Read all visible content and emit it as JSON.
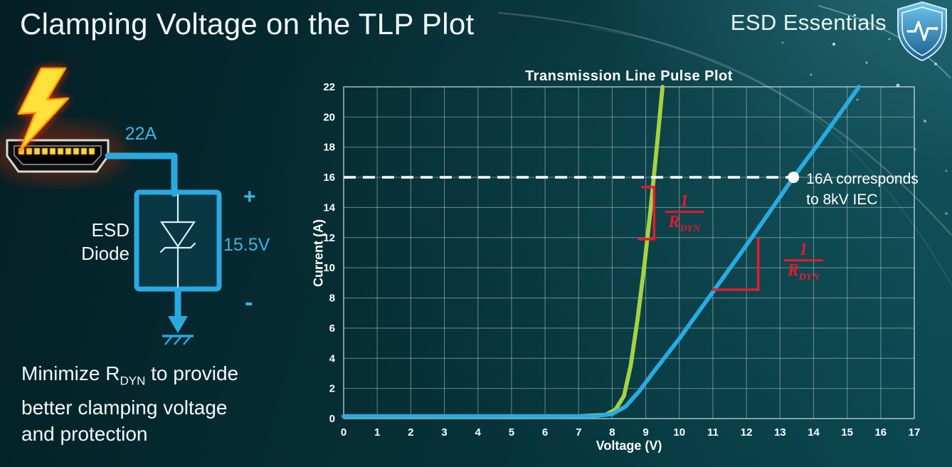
{
  "slide": {
    "title": "Clamping Voltage on the TLP Plot",
    "brand": "ESD Essentials",
    "note_line1_pre": "Minimize R",
    "note_line1_sub": "DYN",
    "note_line1_post": " to provide",
    "note_line2": "better clamping voltage",
    "note_line3": "and protection"
  },
  "diagram": {
    "surge_current": "22A",
    "clamp_voltage": "15.5V",
    "plus_sign": "+",
    "minus_sign": "-",
    "device_line1": "ESD",
    "device_line2": "Diode",
    "wire_color": "#2aa9e0"
  },
  "chart_data": {
    "type": "line",
    "title": "Transmission Line Pulse Plot",
    "xlabel": "Voltage (V)",
    "ylabel": "Current (A)",
    "xlim": [
      0,
      17
    ],
    "ylim": [
      0,
      22
    ],
    "grid": true,
    "x_ticks": [
      0,
      1,
      2,
      3,
      4,
      5,
      6,
      7,
      8,
      9,
      10,
      11,
      12,
      13,
      14,
      15,
      16,
      17
    ],
    "y_ticks": [
      0,
      2,
      4,
      6,
      8,
      10,
      12,
      14,
      16,
      18,
      20,
      22
    ],
    "series": [
      {
        "name": "green",
        "color": "#a6d243",
        "points": [
          [
            0,
            0.15
          ],
          [
            7.0,
            0.15
          ],
          [
            7.8,
            0.25
          ],
          [
            8.1,
            0.6
          ],
          [
            8.35,
            1.5
          ],
          [
            8.55,
            3.5
          ],
          [
            8.75,
            6.5
          ],
          [
            8.95,
            10
          ],
          [
            9.15,
            14
          ],
          [
            9.35,
            18.5
          ],
          [
            9.5,
            22
          ]
        ]
      },
      {
        "name": "blue",
        "color": "#29abe2",
        "points": [
          [
            0,
            0.15
          ],
          [
            7.4,
            0.15
          ],
          [
            8.0,
            0.3
          ],
          [
            8.4,
            0.8
          ],
          [
            8.8,
            1.8
          ],
          [
            9.2,
            3.0
          ],
          [
            10,
            5.3
          ],
          [
            11,
            8.4
          ],
          [
            12,
            11.5
          ],
          [
            13,
            14.7
          ],
          [
            13.4,
            16
          ],
          [
            14,
            17.8
          ],
          [
            15,
            20.9
          ],
          [
            15.35,
            22
          ]
        ]
      }
    ],
    "reference_line": {
      "y": 16,
      "x_start": 0,
      "x_end": 13.4,
      "color": "#ffffff",
      "style": "dashed"
    },
    "marker": {
      "x": 13.4,
      "y": 16,
      "color": "#ffffff"
    },
    "marker_label": {
      "lines": [
        "16A corresponds",
        "to 8kV IEC"
      ],
      "color": "#ffffff"
    },
    "annotations": [
      {
        "id": "rdyn-green",
        "color": "#e8192c",
        "elbow": [
          [
            8.9,
            15.35
          ],
          [
            9.25,
            15.35
          ],
          [
            9.25,
            11.9
          ],
          [
            8.8,
            11.9
          ]
        ],
        "frac": {
          "x": 10.15,
          "y": 13.6,
          "num": "1",
          "den_main": "R",
          "den_sub": "DYN"
        }
      },
      {
        "id": "rdyn-blue",
        "color": "#e8192c",
        "elbow": [
          [
            11.0,
            8.55
          ],
          [
            12.35,
            8.55
          ],
          [
            12.35,
            11.9
          ]
        ],
        "frac": {
          "x": 13.7,
          "y": 10.4,
          "num": "1",
          "den_main": "R",
          "den_sub": "DYN"
        }
      }
    ]
  }
}
